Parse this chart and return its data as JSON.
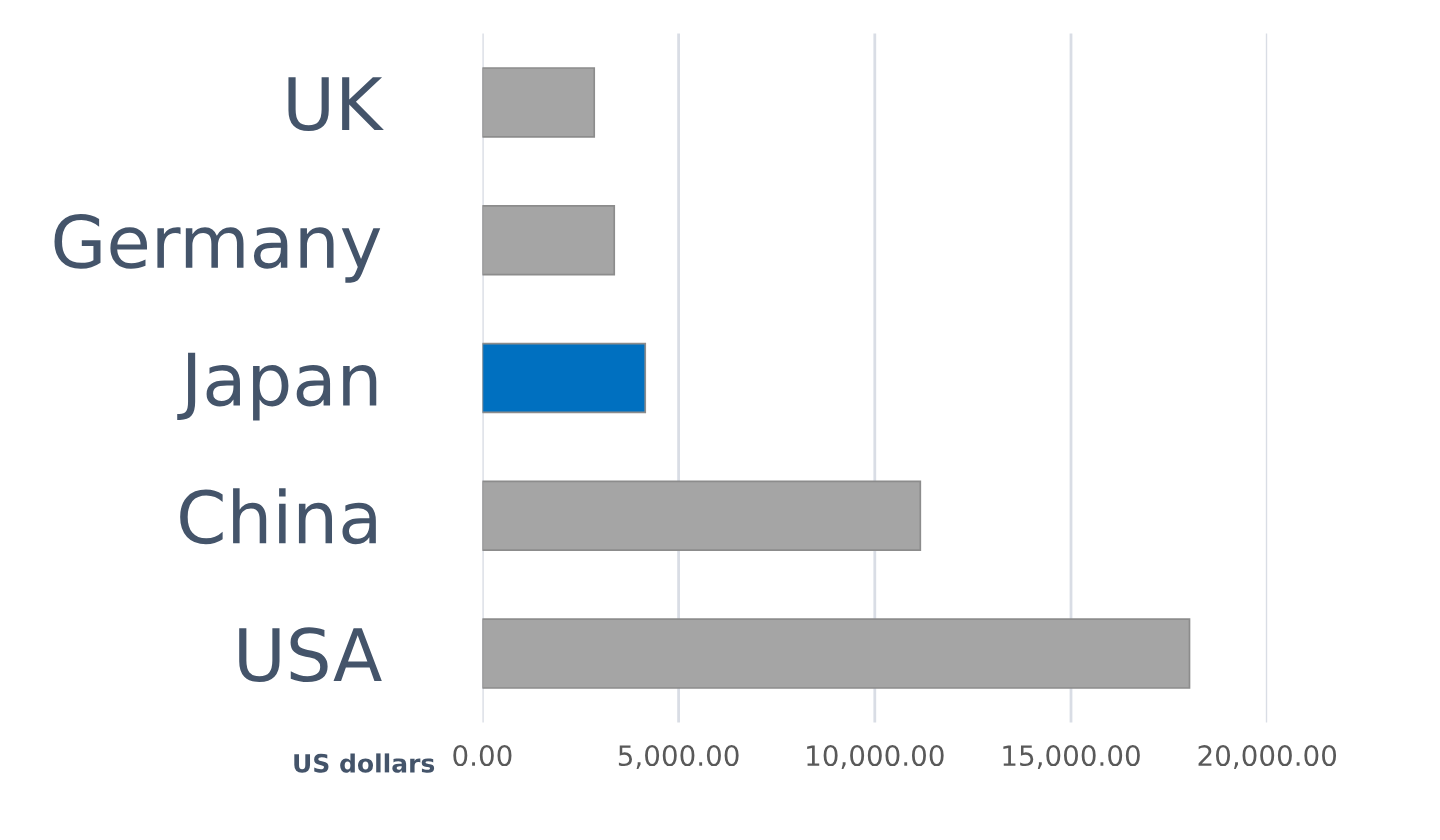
{
  "chart_data": {
    "type": "bar",
    "orientation": "horizontal",
    "xlabel": "US dollars",
    "categories": [
      "UK",
      "Germany",
      "Japan",
      "China",
      "USA"
    ],
    "values": [
      2850,
      3360,
      4150,
      11160,
      18020
    ],
    "colors": [
      "#a5a5a5",
      "#a5a5a5",
      "#0070c0",
      "#a5a5a5",
      "#a5a5a5"
    ],
    "xlim": [
      0,
      20000
    ],
    "xticks": [
      {
        "value": 0,
        "label": "0.00"
      },
      {
        "value": 5000,
        "label": "5,000.00"
      },
      {
        "value": 10000,
        "label": "10,000.00"
      },
      {
        "value": 15000,
        "label": "15,000.00"
      },
      {
        "value": 20000,
        "label": "20,000.00"
      }
    ],
    "grid": "x",
    "legend": false
  }
}
